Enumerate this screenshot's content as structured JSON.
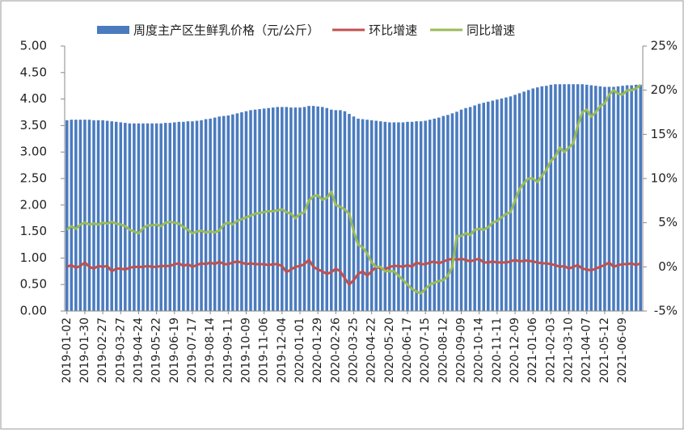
{
  "chart_data": {
    "type": "bar",
    "categories": [
      "2019-01-02",
      null,
      null,
      null,
      "2019-01-30",
      null,
      null,
      null,
      "2019-02-27",
      null,
      null,
      null,
      "2019-03-27",
      null,
      null,
      null,
      "2019-04-24",
      null,
      null,
      null,
      "2019-05-22",
      null,
      null,
      null,
      "2019-06-19",
      null,
      null,
      null,
      "2019-07-17",
      null,
      null,
      null,
      "2019-08-14",
      null,
      null,
      null,
      "2019-09-11",
      null,
      null,
      null,
      "2019-10-09",
      null,
      null,
      null,
      "2019-11-06",
      null,
      null,
      null,
      "2019-12-04",
      null,
      null,
      null,
      "2020-01-01",
      null,
      null,
      null,
      "2020-01-29",
      null,
      null,
      null,
      "2020-02-26",
      null,
      null,
      null,
      "2020-03-25",
      null,
      null,
      null,
      "2020-04-22",
      null,
      null,
      null,
      "2020-05-20",
      null,
      null,
      null,
      "2020-06-17",
      null,
      null,
      null,
      "2020-07-15",
      null,
      null,
      null,
      "2020-08-12",
      null,
      null,
      null,
      "2020-09-09",
      null,
      null,
      null,
      "2020-10-14",
      null,
      null,
      null,
      "2020-11-11",
      null,
      null,
      null,
      "2020-12-09",
      null,
      null,
      null,
      "2021-01-06",
      null,
      null,
      null,
      "2021-02-03",
      null,
      null,
      null,
      "2021-03-10",
      null,
      null,
      null,
      "2021-04-07",
      null,
      null,
      null,
      "2021-05-12",
      null,
      null,
      null,
      "2021-06-09",
      null,
      null,
      null,
      null
    ],
    "series": [
      {
        "name": "周度主产区生鲜乳价格（元/公斤）",
        "type": "bar",
        "color": "#4a7bbf",
        "values": [
          3.6,
          3.61,
          3.61,
          3.61,
          3.61,
          3.61,
          3.6,
          3.6,
          3.6,
          3.59,
          3.58,
          3.57,
          3.56,
          3.55,
          3.54,
          3.54,
          3.54,
          3.54,
          3.54,
          3.54,
          3.54,
          3.54,
          3.55,
          3.55,
          3.56,
          3.57,
          3.57,
          3.58,
          3.58,
          3.59,
          3.6,
          3.62,
          3.63,
          3.65,
          3.67,
          3.68,
          3.69,
          3.71,
          3.73,
          3.75,
          3.77,
          3.79,
          3.8,
          3.81,
          3.82,
          3.83,
          3.84,
          3.85,
          3.85,
          3.85,
          3.84,
          3.84,
          3.84,
          3.85,
          3.87,
          3.87,
          3.86,
          3.85,
          3.83,
          3.8,
          3.79,
          3.79,
          3.77,
          3.72,
          3.67,
          3.63,
          3.62,
          3.61,
          3.6,
          3.59,
          3.58,
          3.57,
          3.56,
          3.56,
          3.56,
          3.56,
          3.57,
          3.57,
          3.58,
          3.58,
          3.59,
          3.61,
          3.63,
          3.65,
          3.68,
          3.7,
          3.73,
          3.76,
          3.8,
          3.83,
          3.85,
          3.88,
          3.91,
          3.93,
          3.95,
          3.97,
          3.99,
          4.01,
          4.03,
          4.05,
          4.08,
          4.11,
          4.14,
          4.17,
          4.2,
          4.22,
          4.24,
          4.25,
          4.27,
          4.28,
          4.28,
          4.28,
          4.28,
          4.28,
          4.28,
          4.28,
          4.27,
          4.26,
          4.25,
          4.24,
          4.23,
          4.23,
          4.23,
          4.24,
          4.25,
          4.26,
          4.26,
          4.27,
          4.27
        ]
      },
      {
        "name": "环比增速",
        "type": "line",
        "axis": "y2",
        "color": "#c0504d",
        "values": [
          0.0,
          0.2,
          -0.1,
          0.1,
          0.5,
          0.0,
          -0.2,
          0.1,
          0.0,
          0.1,
          -0.5,
          -0.2,
          -0.2,
          -0.3,
          -0.1,
          0.0,
          0.0,
          0.0,
          0.1,
          0.0,
          0.0,
          0.1,
          0.1,
          0.1,
          0.3,
          0.4,
          0.1,
          0.3,
          0.0,
          0.2,
          0.4,
          0.3,
          0.5,
          0.3,
          0.6,
          0.3,
          0.3,
          0.5,
          0.6,
          0.5,
          0.3,
          0.4,
          0.3,
          0.3,
          0.3,
          0.2,
          0.3,
          0.3,
          0.1,
          -0.6,
          -0.3,
          0.0,
          0.1,
          0.3,
          0.8,
          0.0,
          -0.3,
          -0.5,
          -0.8,
          -0.6,
          -0.2,
          -0.5,
          -1.3,
          -2.0,
          -1.5,
          -0.8,
          -0.5,
          -1.0,
          -0.5,
          0.0,
          -0.2,
          -0.3,
          0.0,
          0.1,
          0.1,
          0.0,
          0.2,
          0.0,
          0.5,
          0.3,
          0.3,
          0.5,
          0.6,
          0.4,
          0.6,
          0.8,
          0.9,
          0.8,
          0.9,
          0.8,
          0.6,
          0.8,
          0.9,
          0.5,
          0.5,
          0.6,
          0.5,
          0.5,
          0.5,
          0.6,
          0.8,
          0.6,
          0.7,
          0.7,
          0.6,
          0.5,
          0.4,
          0.4,
          0.3,
          0.2,
          0.0,
          0.1,
          -0.2,
          0.0,
          0.2,
          -0.2,
          -0.3,
          -0.4,
          -0.2,
          0.0,
          0.2,
          0.5,
          0.0,
          0.2,
          0.3,
          0.3,
          0.4,
          0.2,
          0.4
        ]
      },
      {
        "name": "同比增速",
        "type": "line",
        "axis": "y2",
        "color": "#9bbb59",
        "values": [
          4.2,
          4.6,
          4.3,
          4.8,
          5.0,
          4.8,
          4.9,
          4.8,
          5.0,
          4.9,
          5.1,
          4.9,
          4.8,
          4.6,
          4.2,
          4.0,
          3.8,
          4.4,
          4.7,
          4.7,
          4.8,
          4.6,
          5.0,
          5.1,
          5.0,
          4.9,
          4.5,
          4.2,
          3.8,
          4.0,
          4.1,
          3.9,
          4.0,
          3.9,
          4.1,
          4.8,
          5.0,
          4.8,
          5.2,
          5.4,
          5.6,
          5.8,
          6.0,
          6.1,
          6.2,
          6.3,
          6.3,
          6.4,
          6.5,
          6.2,
          6.0,
          5.5,
          6.0,
          6.2,
          7.5,
          8.0,
          8.1,
          7.6,
          7.8,
          8.5,
          7.0,
          6.8,
          6.5,
          6.0,
          4.0,
          2.5,
          2.2,
          1.5,
          0.5,
          0.0,
          0.0,
          -0.5,
          -0.5,
          -0.5,
          -1.0,
          -1.5,
          -2.0,
          -2.5,
          -2.8,
          -3.0,
          -2.5,
          -2.0,
          -1.8,
          -1.6,
          -1.5,
          -1.0,
          0.0,
          3.5,
          3.5,
          3.8,
          3.6,
          4.2,
          4.3,
          4.2,
          4.5,
          5.0,
          5.2,
          5.6,
          6.0,
          6.2,
          7.5,
          8.8,
          9.5,
          10.0,
          10.0,
          9.6,
          10.3,
          11.0,
          12.0,
          12.5,
          13.5,
          13.0,
          13.5,
          14.0,
          16.0,
          17.5,
          17.8,
          17.0,
          17.5,
          18.2,
          18.5,
          19.5,
          20.0,
          19.6,
          19.5,
          20.0,
          20.0,
          20.2,
          20.6
        ]
      }
    ],
    "ylim": [
      0,
      5
    ],
    "yticks": [
      {
        "value": 0,
        "label": "0.00"
      },
      {
        "value": 0.5,
        "label": "0.50"
      },
      {
        "value": 1,
        "label": "1.00"
      },
      {
        "value": 1.5,
        "label": "1.50"
      },
      {
        "value": 2,
        "label": "2.00"
      },
      {
        "value": 2.5,
        "label": "2.50"
      },
      {
        "value": 3,
        "label": "3.00"
      },
      {
        "value": 3.5,
        "label": "3.50"
      },
      {
        "value": 4,
        "label": "4.00"
      },
      {
        "value": 4.5,
        "label": "4.50"
      },
      {
        "value": 5,
        "label": "5.00"
      }
    ],
    "y2lim": [
      -5,
      25
    ],
    "y2ticks": [
      {
        "value": -5,
        "label": "-5%"
      },
      {
        "value": 0,
        "label": "0%"
      },
      {
        "value": 5,
        "label": "5%"
      },
      {
        "value": 10,
        "label": "10%"
      },
      {
        "value": 15,
        "label": "15%"
      },
      {
        "value": 20,
        "label": "20%"
      },
      {
        "value": 25,
        "label": "25%"
      }
    ],
    "legend": "top"
  }
}
